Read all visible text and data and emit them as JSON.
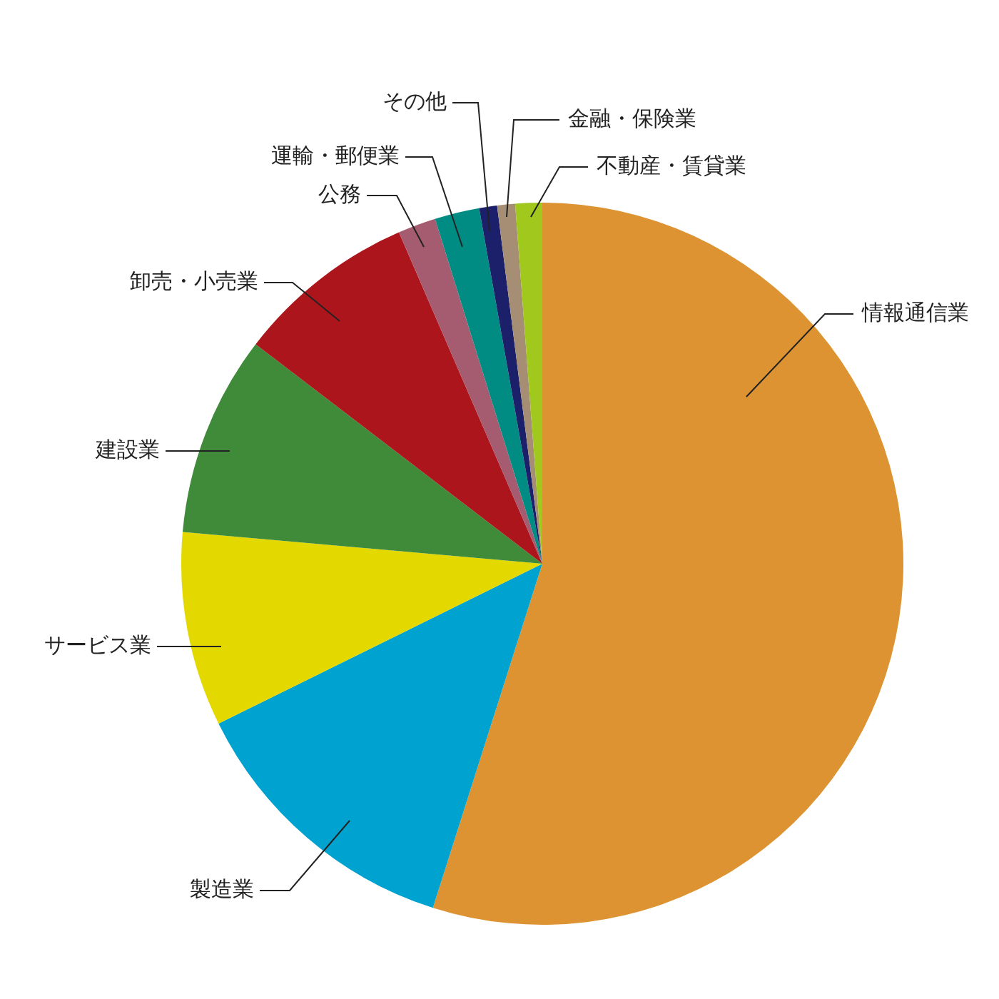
{
  "chart_data": {
    "type": "pie",
    "categories": [
      "情報通信業",
      "製造業",
      "サービス業",
      "建設業",
      "卸売・小売業",
      "公務",
      "運輸・郵便業",
      "その他",
      "金融・保険業",
      "不動産・賃貸業"
    ],
    "values": [
      54.9,
      12.8,
      8.7,
      9.0,
      8.1,
      1.7,
      2.0,
      0.8,
      0.8,
      1.2
    ],
    "colors": [
      "#dd9332",
      "#00a3cf",
      "#e3d900",
      "#3f8b3a",
      "#ad151d",
      "#a55c70",
      "#008c83",
      "#1c1f6a",
      "#a58e74",
      "#a0c81d"
    ],
    "legend": false
  }
}
